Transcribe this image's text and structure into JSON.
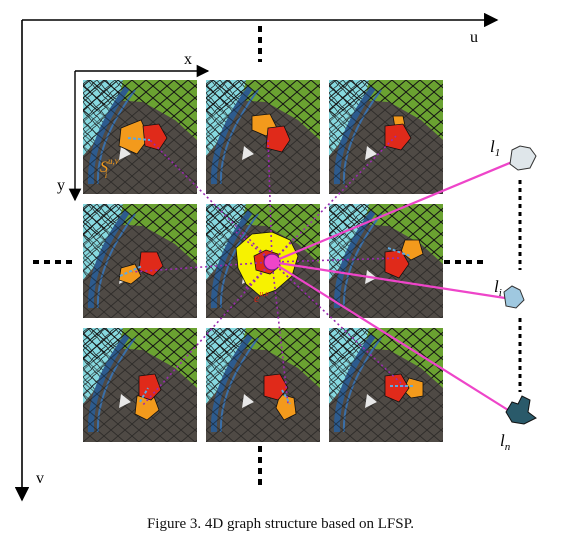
{
  "axes": {
    "u": "u",
    "v": "v",
    "x": "x",
    "y": "y"
  },
  "annotations": {
    "superpixel": "S",
    "superpixel_sup": "u,v",
    "superpixel_sub": "i",
    "center_node": "e",
    "center_sup": "u,v"
  },
  "labels": [
    {
      "base": "l",
      "sub": "1"
    },
    {
      "base": "l",
      "sub": "i"
    },
    {
      "base": "l",
      "sub": "n"
    }
  ],
  "caption": "Figure 3. 4D graph structure based on LFSP.",
  "colors": {
    "sky": "#86d8df",
    "grass": "#6aa231",
    "road": "#4f4a45",
    "orange": "#f39a1c",
    "red": "#e02a1a",
    "yellow": "#f7f200",
    "magenta": "#ee45c9",
    "dotted_link": "#9b2ab0",
    "label_light": "#dfe6ea",
    "label_mid": "#9fc8e0",
    "label_dark": "#2a5a6a"
  }
}
